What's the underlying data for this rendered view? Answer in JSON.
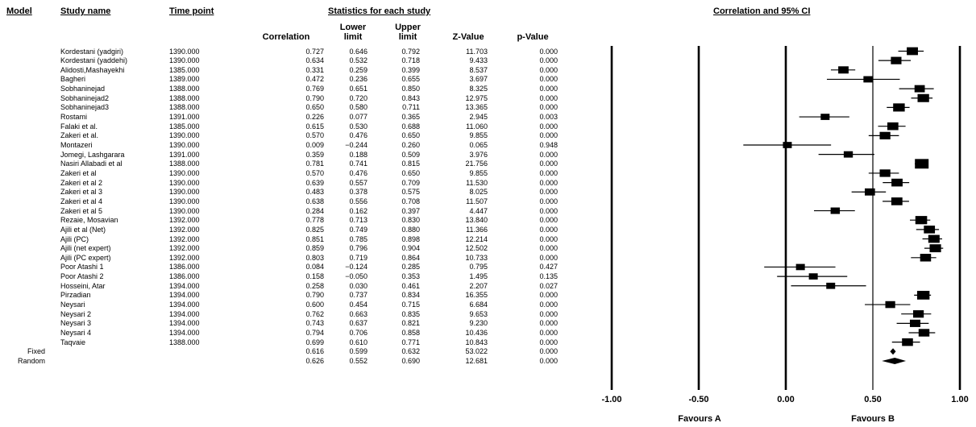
{
  "headers": {
    "model": "Model",
    "study_name": "Study name",
    "time_point": "Time point",
    "stats": "Statistics for each study",
    "ci_title": "Correlation and 95% CI",
    "correlation": "Correlation",
    "lower": "Lower limit",
    "upper": "Upper limit",
    "z": "Z-Value",
    "p": "p-Value"
  },
  "footer": {
    "favours_a": "Favours A",
    "favours_b": "Favours B"
  },
  "chart_data": {
    "type": "forest",
    "title": "Correlation and 95% CI",
    "xlim": [
      -1.0,
      1.0
    ],
    "xticks": [
      "-1.00",
      "-0.50",
      "0.00",
      "0.50",
      "1.00"
    ],
    "xtick_values": [
      -1.0,
      -0.5,
      0.0,
      0.5,
      1.0
    ],
    "reference_lines": [
      -1.0,
      -0.5,
      0.0,
      0.5,
      1.0
    ],
    "studies": [
      {
        "name": "Kordestani (yadgiri)",
        "time": "1390.000",
        "corr": "0.727",
        "lower": "0.646",
        "upper": "0.792",
        "z": "11.703",
        "p": "0.000"
      },
      {
        "name": "Kordestani (yaddehi)",
        "time": "1390.000",
        "corr": "0.634",
        "lower": "0.532",
        "upper": "0.718",
        "z": "9.433",
        "p": "0.000"
      },
      {
        "name": "Alidosti,Mashayekhi",
        "time": "1385.000",
        "corr": "0.331",
        "lower": "0.259",
        "upper": "0.399",
        "z": "8.537",
        "p": "0.000"
      },
      {
        "name": "Bagheri",
        "time": "1389.000",
        "corr": "0.472",
        "lower": "0.236",
        "upper": "0.655",
        "z": "3.697",
        "p": "0.000"
      },
      {
        "name": "Sobhaninejad",
        "time": "1388.000",
        "corr": "0.769",
        "lower": "0.651",
        "upper": "0.850",
        "z": "8.325",
        "p": "0.000"
      },
      {
        "name": "Sobhaninejad2",
        "time": "1388.000",
        "corr": "0.790",
        "lower": "0.720",
        "upper": "0.843",
        "z": "12.975",
        "p": "0.000"
      },
      {
        "name": "Sobhaninejad3",
        "time": "1388.000",
        "corr": "0.650",
        "lower": "0.580",
        "upper": "0.711",
        "z": "13.365",
        "p": "0.000"
      },
      {
        "name": "Rostami",
        "time": "1391.000",
        "corr": "0.226",
        "lower": "0.077",
        "upper": "0.365",
        "z": "2.945",
        "p": "0.003"
      },
      {
        "name": "Falaki et al.",
        "time": "1385.000",
        "corr": "0.615",
        "lower": "0.530",
        "upper": "0.688",
        "z": "11.060",
        "p": "0.000"
      },
      {
        "name": "Zakeri et al.",
        "time": "1390.000",
        "corr": "0.570",
        "lower": "0.476",
        "upper": "0.650",
        "z": "9.855",
        "p": "0.000"
      },
      {
        "name": "Montazeri",
        "time": "1390.000",
        "corr": "0.009",
        "lower": "−0.244",
        "upper": "0.260",
        "z": "0.065",
        "p": "0.948"
      },
      {
        "name": "Jomegi, Lashgarara",
        "time": "1391.000",
        "corr": "0.359",
        "lower": "0.188",
        "upper": "0.509",
        "z": "3.976",
        "p": "0.000"
      },
      {
        "name": "Nasiri Allabadi et al",
        "time": "1388.000",
        "corr": "0.781",
        "lower": "0.741",
        "upper": "0.815",
        "z": "21.756",
        "p": "0.000"
      },
      {
        "name": "Zakeri et al",
        "time": "1390.000",
        "corr": "0.570",
        "lower": "0.476",
        "upper": "0.650",
        "z": "9.855",
        "p": "0.000"
      },
      {
        "name": "Zakeri et al 2",
        "time": "1390.000",
        "corr": "0.639",
        "lower": "0.557",
        "upper": "0.709",
        "z": "11.530",
        "p": "0.000"
      },
      {
        "name": "Zakeri et al 3",
        "time": "1390.000",
        "corr": "0.483",
        "lower": "0.378",
        "upper": "0.575",
        "z": "8.025",
        "p": "0.000"
      },
      {
        "name": "Zakeri et al 4",
        "time": "1390.000",
        "corr": "0.638",
        "lower": "0.556",
        "upper": "0.708",
        "z": "11.507",
        "p": "0.000"
      },
      {
        "name": "Zakeri et al 5",
        "time": "1390.000",
        "corr": "0.284",
        "lower": "0.162",
        "upper": "0.397",
        "z": "4.447",
        "p": "0.000"
      },
      {
        "name": "Rezaie, Mosavian",
        "time": "1392.000",
        "corr": "0.778",
        "lower": "0.713",
        "upper": "0.830",
        "z": "13.840",
        "p": "0.000"
      },
      {
        "name": "Ajili et al (Net)",
        "time": "1392.000",
        "corr": "0.825",
        "lower": "0.749",
        "upper": "0.880",
        "z": "11.366",
        "p": "0.000"
      },
      {
        "name": "Ajili (PC)",
        "time": "1392.000",
        "corr": "0.851",
        "lower": "0.785",
        "upper": "0.898",
        "z": "12.214",
        "p": "0.000"
      },
      {
        "name": "Ajili (net expert)",
        "time": "1392.000",
        "corr": "0.859",
        "lower": "0.796",
        "upper": "0.904",
        "z": "12.502",
        "p": "0.000"
      },
      {
        "name": "Ajili (PC expert)",
        "time": "1392.000",
        "corr": "0.803",
        "lower": "0.719",
        "upper": "0.864",
        "z": "10.733",
        "p": "0.000"
      },
      {
        "name": "Poor Atashi 1",
        "time": "1386.000",
        "corr": "0.084",
        "lower": "−0.124",
        "upper": "0.285",
        "z": "0.795",
        "p": "0.427"
      },
      {
        "name": "Poor Atashi 2",
        "time": "1386.000",
        "corr": "0.158",
        "lower": "−0.050",
        "upper": "0.353",
        "z": "1.495",
        "p": "0.135"
      },
      {
        "name": "Hosseini, Atar",
        "time": "1394.000",
        "corr": "0.258",
        "lower": "0.030",
        "upper": "0.461",
        "z": "2.207",
        "p": "0.027"
      },
      {
        "name": "Pirzadian",
        "time": "1394.000",
        "corr": "0.790",
        "lower": "0.737",
        "upper": "0.834",
        "z": "16.355",
        "p": "0.000"
      },
      {
        "name": "Neysari",
        "time": "1394.000",
        "corr": "0.600",
        "lower": "0.454",
        "upper": "0.715",
        "z": "6.684",
        "p": "0.000"
      },
      {
        "name": "Neysari 2",
        "time": "1394.000",
        "corr": "0.762",
        "lower": "0.663",
        "upper": "0.835",
        "z": "9.653",
        "p": "0.000"
      },
      {
        "name": "Neysari 3",
        "time": "1394.000",
        "corr": "0.743",
        "lower": "0.637",
        "upper": "0.821",
        "z": "9.230",
        "p": "0.000"
      },
      {
        "name": "Neysari 4",
        "time": "1394.000",
        "corr": "0.794",
        "lower": "0.706",
        "upper": "0.858",
        "z": "10.436",
        "p": "0.000"
      },
      {
        "name": "Taqvaie",
        "time": "1388.000",
        "corr": "0.699",
        "lower": "0.610",
        "upper": "0.771",
        "z": "10.843",
        "p": "0.000"
      }
    ],
    "summary": [
      {
        "model": "Fixed",
        "corr": "0.616",
        "lower": "0.599",
        "upper": "0.632",
        "z": "53.022",
        "p": "0.000"
      },
      {
        "model": "Random",
        "corr": "0.626",
        "lower": "0.552",
        "upper": "0.690",
        "z": "12.681",
        "p": "0.000"
      }
    ]
  }
}
